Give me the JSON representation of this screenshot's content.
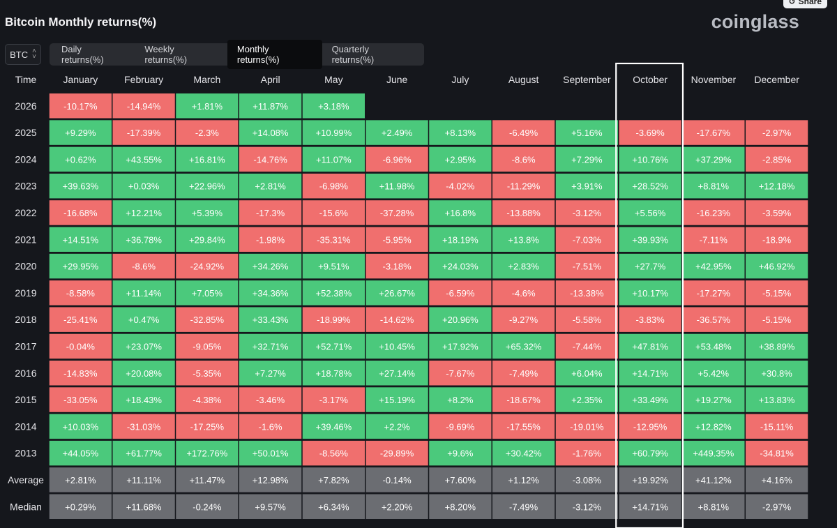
{
  "header": {
    "title": "Bitcoin Monthly returns(%)",
    "brand": "coinglass",
    "share_label": "Share"
  },
  "coin_selector": {
    "value": "BTC"
  },
  "tabs": [
    {
      "label": "Daily returns(%)",
      "active": false
    },
    {
      "label": "Weekly returns(%)",
      "active": false
    },
    {
      "label": "Monthly returns(%)",
      "active": true
    },
    {
      "label": "Quarterly returns(%)",
      "active": false
    }
  ],
  "colors": {
    "positive": "#4bc97c",
    "negative": "#f06f6e",
    "summary": "#6b6d72",
    "highlight": "#ffffff"
  },
  "chart_data": {
    "type": "table",
    "title": "Bitcoin Monthly returns(%)",
    "corner_label": "Time",
    "columns": [
      "January",
      "February",
      "March",
      "April",
      "May",
      "June",
      "July",
      "August",
      "September",
      "October",
      "November",
      "December"
    ],
    "highlighted_column": "October",
    "rows": [
      {
        "label": "2026",
        "kind": "year",
        "values": [
          "-10.17%",
          "-14.94%",
          "+1.81%",
          "+11.87%",
          "+3.18%",
          "",
          "",
          "",
          "",
          "",
          "",
          ""
        ]
      },
      {
        "label": "2025",
        "kind": "year",
        "values": [
          "+9.29%",
          "-17.39%",
          "-2.3%",
          "+14.08%",
          "+10.99%",
          "+2.49%",
          "+8.13%",
          "-6.49%",
          "+5.16%",
          "-3.69%",
          "-17.67%",
          "-2.97%"
        ]
      },
      {
        "label": "2024",
        "kind": "year",
        "values": [
          "+0.62%",
          "+43.55%",
          "+16.81%",
          "-14.76%",
          "+11.07%",
          "-6.96%",
          "+2.95%",
          "-8.6%",
          "+7.29%",
          "+10.76%",
          "+37.29%",
          "-2.85%"
        ]
      },
      {
        "label": "2023",
        "kind": "year",
        "values": [
          "+39.63%",
          "+0.03%",
          "+22.96%",
          "+2.81%",
          "-6.98%",
          "+11.98%",
          "-4.02%",
          "-11.29%",
          "+3.91%",
          "+28.52%",
          "+8.81%",
          "+12.18%"
        ]
      },
      {
        "label": "2022",
        "kind": "year",
        "values": [
          "-16.68%",
          "+12.21%",
          "+5.39%",
          "-17.3%",
          "-15.6%",
          "-37.28%",
          "+16.8%",
          "-13.88%",
          "-3.12%",
          "+5.56%",
          "-16.23%",
          "-3.59%"
        ]
      },
      {
        "label": "2021",
        "kind": "year",
        "values": [
          "+14.51%",
          "+36.78%",
          "+29.84%",
          "-1.98%",
          "-35.31%",
          "-5.95%",
          "+18.19%",
          "+13.8%",
          "-7.03%",
          "+39.93%",
          "-7.11%",
          "-18.9%"
        ]
      },
      {
        "label": "2020",
        "kind": "year",
        "values": [
          "+29.95%",
          "-8.6%",
          "-24.92%",
          "+34.26%",
          "+9.51%",
          "-3.18%",
          "+24.03%",
          "+2.83%",
          "-7.51%",
          "+27.7%",
          "+42.95%",
          "+46.92%"
        ]
      },
      {
        "label": "2019",
        "kind": "year",
        "values": [
          "-8.58%",
          "+11.14%",
          "+7.05%",
          "+34.36%",
          "+52.38%",
          "+26.67%",
          "-6.59%",
          "-4.6%",
          "-13.38%",
          "+10.17%",
          "-17.27%",
          "-5.15%"
        ]
      },
      {
        "label": "2018",
        "kind": "year",
        "values": [
          "-25.41%",
          "+0.47%",
          "-32.85%",
          "+33.43%",
          "-18.99%",
          "-14.62%",
          "+20.96%",
          "-9.27%",
          "-5.58%",
          "-3.83%",
          "-36.57%",
          "-5.15%"
        ]
      },
      {
        "label": "2017",
        "kind": "year",
        "values": [
          "-0.04%",
          "+23.07%",
          "-9.05%",
          "+32.71%",
          "+52.71%",
          "+10.45%",
          "+17.92%",
          "+65.32%",
          "-7.44%",
          "+47.81%",
          "+53.48%",
          "+38.89%"
        ]
      },
      {
        "label": "2016",
        "kind": "year",
        "values": [
          "-14.83%",
          "+20.08%",
          "-5.35%",
          "+7.27%",
          "+18.78%",
          "+27.14%",
          "-7.67%",
          "-7.49%",
          "+6.04%",
          "+14.71%",
          "+5.42%",
          "+30.8%"
        ]
      },
      {
        "label": "2015",
        "kind": "year",
        "values": [
          "-33.05%",
          "+18.43%",
          "-4.38%",
          "-3.46%",
          "-3.17%",
          "+15.19%",
          "+8.2%",
          "-18.67%",
          "+2.35%",
          "+33.49%",
          "+19.27%",
          "+13.83%"
        ]
      },
      {
        "label": "2014",
        "kind": "year",
        "values": [
          "+10.03%",
          "-31.03%",
          "-17.25%",
          "-1.6%",
          "+39.46%",
          "+2.2%",
          "-9.69%",
          "-17.55%",
          "-19.01%",
          "-12.95%",
          "+12.82%",
          "-15.11%"
        ]
      },
      {
        "label": "2013",
        "kind": "year",
        "values": [
          "+44.05%",
          "+61.77%",
          "+172.76%",
          "+50.01%",
          "-8.56%",
          "-29.89%",
          "+9.6%",
          "+30.42%",
          "-1.76%",
          "+60.79%",
          "+449.35%",
          "-34.81%"
        ]
      },
      {
        "label": "Average",
        "kind": "summary",
        "values": [
          "+2.81%",
          "+11.11%",
          "+11.47%",
          "+12.98%",
          "+7.82%",
          "-0.14%",
          "+7.60%",
          "+1.12%",
          "-3.08%",
          "+19.92%",
          "+41.12%",
          "+4.16%"
        ]
      },
      {
        "label": "Median",
        "kind": "summary",
        "values": [
          "+0.29%",
          "+11.68%",
          "-0.24%",
          "+9.57%",
          "+6.34%",
          "+2.20%",
          "+8.20%",
          "-7.49%",
          "-3.12%",
          "+14.71%",
          "+8.81%",
          "-2.97%"
        ]
      }
    ]
  }
}
